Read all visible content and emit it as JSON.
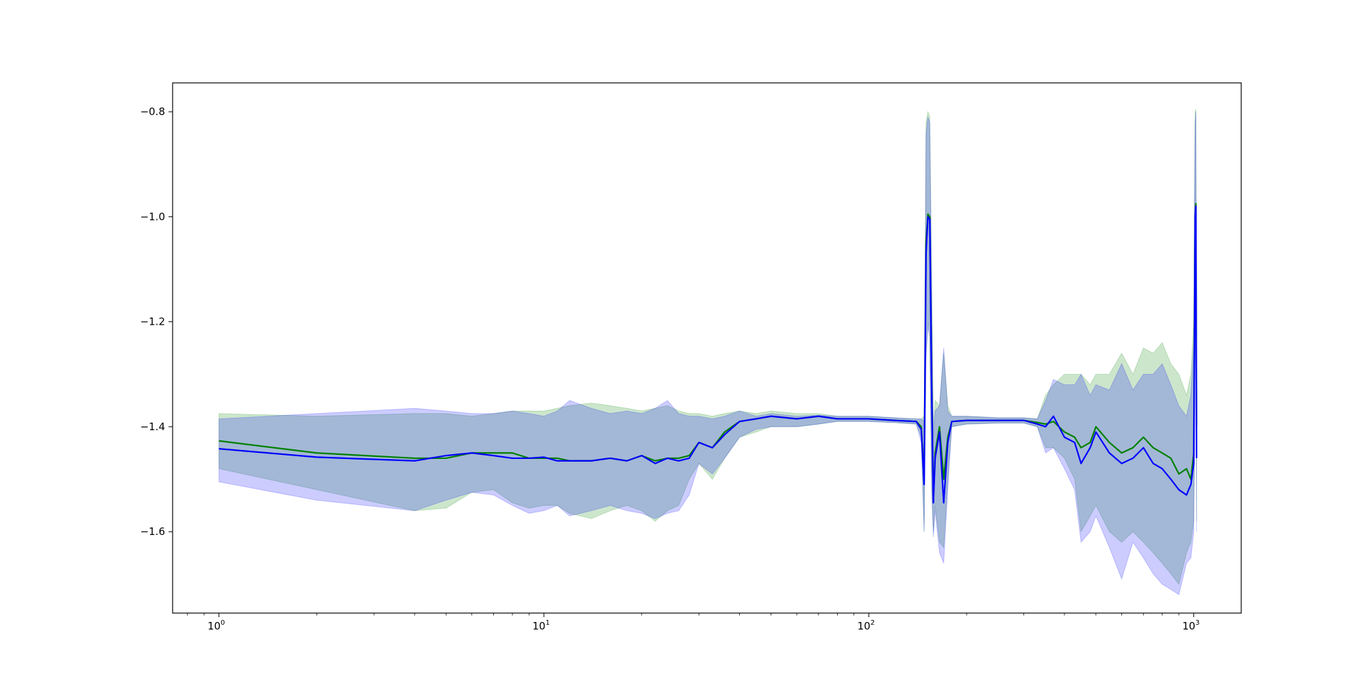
{
  "chart_data": {
    "type": "line",
    "title": "",
    "xlabel": "",
    "ylabel": "",
    "xscale": "log",
    "xlim": [
      0.72,
      1400
    ],
    "ylim": [
      -1.755,
      -0.745
    ],
    "grid": false,
    "legend": "none",
    "x_ticks": [
      {
        "value": 1,
        "base": "10",
        "exp": "0"
      },
      {
        "value": 10,
        "base": "10",
        "exp": "1"
      },
      {
        "value": 100,
        "base": "10",
        "exp": "2"
      },
      {
        "value": 1000,
        "base": "10",
        "exp": "3"
      }
    ],
    "y_ticks": [
      {
        "value": -0.8,
        "label": "−0.8"
      },
      {
        "value": -1.0,
        "label": "−1.0"
      },
      {
        "value": -1.2,
        "label": "−1.2"
      },
      {
        "value": -1.4,
        "label": "−1.4"
      },
      {
        "value": -1.6,
        "label": "−1.6"
      }
    ],
    "series": [
      {
        "color": "#008000",
        "band_color": "#008000",
        "band_opacity": 0.2,
        "x": [
          1,
          2,
          4,
          5,
          6,
          7,
          8,
          9,
          10,
          11,
          12,
          14,
          16,
          18,
          20,
          22,
          24,
          26,
          28,
          30,
          33,
          36,
          40,
          45,
          50,
          60,
          70,
          80,
          100,
          120,
          140,
          145,
          148,
          150,
          152,
          154,
          156,
          158,
          160,
          165,
          170,
          175,
          180,
          200,
          250,
          300,
          330,
          350,
          370,
          400,
          430,
          450,
          480,
          500,
          550,
          600,
          650,
          700,
          750,
          800,
          850,
          900,
          950,
          980,
          1000,
          1005,
          1010,
          1015,
          1020
        ],
        "y": [
          -1.427,
          -1.45,
          -1.46,
          -1.46,
          -1.45,
          -1.45,
          -1.45,
          -1.46,
          -1.46,
          -1.46,
          -1.465,
          -1.465,
          -1.46,
          -1.465,
          -1.455,
          -1.465,
          -1.46,
          -1.46,
          -1.455,
          -1.43,
          -1.44,
          -1.41,
          -1.39,
          -1.385,
          -1.38,
          -1.385,
          -1.38,
          -1.385,
          -1.385,
          -1.388,
          -1.39,
          -1.4,
          -1.5,
          -1.05,
          -0.995,
          -1.0,
          -1.3,
          -1.54,
          -1.45,
          -1.4,
          -1.5,
          -1.42,
          -1.39,
          -1.388,
          -1.388,
          -1.388,
          -1.392,
          -1.395,
          -1.39,
          -1.41,
          -1.42,
          -1.44,
          -1.43,
          -1.4,
          -1.43,
          -1.45,
          -1.44,
          -1.42,
          -1.44,
          -1.45,
          -1.46,
          -1.49,
          -1.48,
          -1.5,
          -1.45,
          -1.2,
          -1.0,
          -0.975,
          -1.4
        ],
        "upper": [
          -1.375,
          -1.38,
          -1.375,
          -1.375,
          -1.38,
          -1.375,
          -1.37,
          -1.37,
          -1.37,
          -1.365,
          -1.36,
          -1.355,
          -1.36,
          -1.365,
          -1.37,
          -1.365,
          -1.36,
          -1.37,
          -1.375,
          -1.375,
          -1.38,
          -1.375,
          -1.37,
          -1.375,
          -1.37,
          -1.375,
          -1.375,
          -1.38,
          -1.38,
          -1.383,
          -1.385,
          -1.385,
          -1.38,
          -0.82,
          -0.8,
          -0.81,
          -1.1,
          -1.4,
          -1.35,
          -1.36,
          -1.26,
          -1.36,
          -1.38,
          -1.38,
          -1.383,
          -1.383,
          -1.385,
          -1.34,
          -1.32,
          -1.3,
          -1.3,
          -1.3,
          -1.32,
          -1.3,
          -1.3,
          -1.26,
          -1.3,
          -1.25,
          -1.26,
          -1.24,
          -1.28,
          -1.3,
          -1.34,
          -1.3,
          -1.2,
          -0.96,
          -0.8,
          -0.795,
          -1.2
        ],
        "lower": [
          -1.48,
          -1.52,
          -1.56,
          -1.555,
          -1.525,
          -1.52,
          -1.545,
          -1.555,
          -1.55,
          -1.55,
          -1.565,
          -1.575,
          -1.56,
          -1.55,
          -1.56,
          -1.58,
          -1.56,
          -1.55,
          -1.5,
          -1.47,
          -1.5,
          -1.46,
          -1.42,
          -1.41,
          -1.4,
          -1.4,
          -1.395,
          -1.39,
          -1.39,
          -1.392,
          -1.395,
          -1.42,
          -1.6,
          -1.26,
          -1.2,
          -1.22,
          -1.5,
          -1.6,
          -1.55,
          -1.62,
          -1.63,
          -1.5,
          -1.4,
          -1.395,
          -1.393,
          -1.393,
          -1.4,
          -1.44,
          -1.44,
          -1.46,
          -1.5,
          -1.6,
          -1.57,
          -1.55,
          -1.6,
          -1.62,
          -1.6,
          -1.62,
          -1.64,
          -1.66,
          -1.68,
          -1.7,
          -1.64,
          -1.62,
          -1.58,
          -1.44,
          -1.2,
          -1.16,
          -1.58
        ]
      },
      {
        "color": "#0000ff",
        "band_color": "#0000ff",
        "band_opacity": 0.2,
        "x": [
          1,
          2,
          4,
          5,
          6,
          7,
          8,
          9,
          10,
          11,
          12,
          14,
          16,
          18,
          20,
          22,
          24,
          26,
          28,
          30,
          33,
          36,
          40,
          45,
          50,
          60,
          70,
          80,
          100,
          120,
          140,
          145,
          148,
          150,
          152,
          154,
          156,
          158,
          160,
          165,
          170,
          175,
          180,
          200,
          250,
          300,
          330,
          350,
          370,
          400,
          430,
          450,
          480,
          500,
          550,
          600,
          650,
          700,
          750,
          800,
          850,
          900,
          950,
          980,
          1000,
          1005,
          1010,
          1015,
          1020
        ],
        "y": [
          -1.442,
          -1.458,
          -1.465,
          -1.455,
          -1.45,
          -1.455,
          -1.46,
          -1.46,
          -1.458,
          -1.465,
          -1.465,
          -1.465,
          -1.46,
          -1.465,
          -1.455,
          -1.47,
          -1.46,
          -1.465,
          -1.46,
          -1.43,
          -1.44,
          -1.415,
          -1.39,
          -1.385,
          -1.38,
          -1.385,
          -1.38,
          -1.385,
          -1.385,
          -1.388,
          -1.39,
          -1.405,
          -1.51,
          -1.07,
          -1.0,
          -1.005,
          -1.32,
          -1.545,
          -1.46,
          -1.41,
          -1.545,
          -1.43,
          -1.39,
          -1.388,
          -1.388,
          -1.388,
          -1.395,
          -1.4,
          -1.38,
          -1.42,
          -1.43,
          -1.47,
          -1.44,
          -1.41,
          -1.45,
          -1.47,
          -1.46,
          -1.44,
          -1.47,
          -1.48,
          -1.5,
          -1.52,
          -1.53,
          -1.51,
          -1.47,
          -1.25,
          -1.0,
          -0.98,
          -1.46
        ],
        "upper": [
          -1.385,
          -1.375,
          -1.365,
          -1.37,
          -1.375,
          -1.375,
          -1.37,
          -1.375,
          -1.38,
          -1.37,
          -1.35,
          -1.365,
          -1.375,
          -1.37,
          -1.375,
          -1.365,
          -1.35,
          -1.375,
          -1.38,
          -1.38,
          -1.385,
          -1.38,
          -1.37,
          -1.38,
          -1.375,
          -1.38,
          -1.378,
          -1.38,
          -1.38,
          -1.383,
          -1.385,
          -1.385,
          -1.39,
          -0.84,
          -0.81,
          -0.82,
          -1.12,
          -1.42,
          -1.37,
          -1.36,
          -1.25,
          -1.37,
          -1.38,
          -1.38,
          -1.383,
          -1.383,
          -1.385,
          -1.35,
          -1.31,
          -1.32,
          -1.32,
          -1.3,
          -1.34,
          -1.32,
          -1.33,
          -1.28,
          -1.33,
          -1.3,
          -1.3,
          -1.28,
          -1.32,
          -1.36,
          -1.38,
          -1.34,
          -1.24,
          -0.98,
          -0.82,
          -0.8,
          -1.22
        ],
        "lower": [
          -1.505,
          -1.54,
          -1.56,
          -1.54,
          -1.525,
          -1.53,
          -1.55,
          -1.565,
          -1.56,
          -1.55,
          -1.57,
          -1.56,
          -1.55,
          -1.56,
          -1.565,
          -1.575,
          -1.565,
          -1.56,
          -1.53,
          -1.47,
          -1.49,
          -1.46,
          -1.42,
          -1.405,
          -1.4,
          -1.4,
          -1.395,
          -1.39,
          -1.39,
          -1.392,
          -1.395,
          -1.43,
          -1.6,
          -1.27,
          -1.21,
          -1.23,
          -1.52,
          -1.61,
          -1.56,
          -1.64,
          -1.66,
          -1.52,
          -1.4,
          -1.395,
          -1.393,
          -1.393,
          -1.4,
          -1.45,
          -1.44,
          -1.48,
          -1.52,
          -1.62,
          -1.6,
          -1.57,
          -1.63,
          -1.69,
          -1.62,
          -1.65,
          -1.68,
          -1.7,
          -1.71,
          -1.72,
          -1.66,
          -1.65,
          -1.6,
          -1.45,
          -1.22,
          -1.18,
          -1.6
        ]
      }
    ]
  }
}
